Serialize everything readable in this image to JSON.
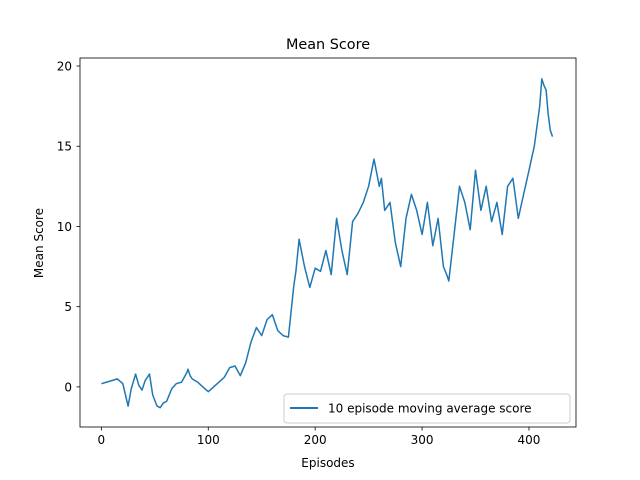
{
  "chart_data": {
    "type": "line",
    "title": "Mean Score",
    "xlabel": "Episodes",
    "ylabel": "Mean Score",
    "xlim": [
      -20,
      444
    ],
    "ylim": [
      -2.5,
      20.5
    ],
    "xticks": [
      0,
      100,
      200,
      300,
      400
    ],
    "yticks": [
      0,
      5,
      10,
      15,
      20
    ],
    "grid": false,
    "legend": {
      "position": "lower-right"
    },
    "series": [
      {
        "name": "10 episode moving average score",
        "color": "#1f77b4",
        "x": [
          0,
          5,
          10,
          15,
          20,
          25,
          28,
          32,
          35,
          38,
          41,
          45,
          48,
          52,
          55,
          58,
          61,
          66,
          70,
          75,
          80,
          81,
          83,
          85,
          90,
          95,
          100,
          105,
          110,
          115,
          120,
          125,
          130,
          135,
          140,
          145,
          150,
          155,
          160,
          165,
          170,
          175,
          180,
          182,
          185,
          190,
          195,
          200,
          205,
          210,
          215,
          220,
          225,
          230,
          235,
          240,
          245,
          250,
          255,
          260,
          262,
          265,
          270,
          275,
          280,
          285,
          290,
          295,
          300,
          305,
          310,
          315,
          320,
          323,
          325,
          330,
          335,
          340,
          345,
          350,
          355,
          360,
          365,
          370,
          375,
          380,
          385,
          390,
          395,
          400,
          405,
          410,
          412,
          414,
          416,
          418,
          420,
          422
        ],
        "y": [
          0.2,
          0.3,
          0.4,
          0.5,
          0.2,
          -1.2,
          -0.1,
          0.8,
          0.1,
          -0.2,
          0.4,
          0.8,
          -0.5,
          -1.2,
          -1.3,
          -1.0,
          -0.9,
          -0.1,
          0.2,
          0.3,
          0.9,
          1.1,
          0.7,
          0.5,
          0.3,
          0.0,
          -0.3,
          0.0,
          0.3,
          0.6,
          1.2,
          1.3,
          0.7,
          1.5,
          2.8,
          3.7,
          3.2,
          4.2,
          4.5,
          3.5,
          3.2,
          3.1,
          6.3,
          7.2,
          9.2,
          7.5,
          6.2,
          7.4,
          7.2,
          8.5,
          7.0,
          10.5,
          8.5,
          7.0,
          10.3,
          10.8,
          11.5,
          12.5,
          14.2,
          12.5,
          13.0,
          11.0,
          11.5,
          9.0,
          7.5,
          10.5,
          12.0,
          11.0,
          9.5,
          11.5,
          8.8,
          10.5,
          7.5,
          7.0,
          6.6,
          9.5,
          12.5,
          11.5,
          9.8,
          13.5,
          11.0,
          12.5,
          10.3,
          11.5,
          9.5,
          12.5,
          13.0,
          10.5,
          12.0,
          13.5,
          15.0,
          17.5,
          19.2,
          18.8,
          18.5,
          17.0,
          16.0,
          15.6
        ]
      }
    ]
  }
}
